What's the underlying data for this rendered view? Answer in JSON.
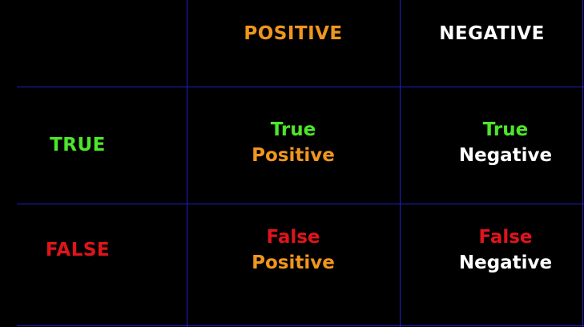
{
  "colors": {
    "grid": "#2020c8",
    "background": "#000000",
    "positive": "#f0961e",
    "negative": "#ffffff",
    "true": "#4ce62a",
    "false": "#e0141c"
  },
  "columns": {
    "positive": "POSITIVE",
    "negative": "NEGATIVE"
  },
  "rows": {
    "true": "TRUE",
    "false": "FALSE"
  },
  "cells": {
    "tp": {
      "line1": "True",
      "line2": "Positive"
    },
    "tn": {
      "line1": "True",
      "line2": "Negative"
    },
    "fp": {
      "line1": "False",
      "line2": "Positive"
    },
    "fn": {
      "line1": "False",
      "line2": "Negative"
    }
  }
}
